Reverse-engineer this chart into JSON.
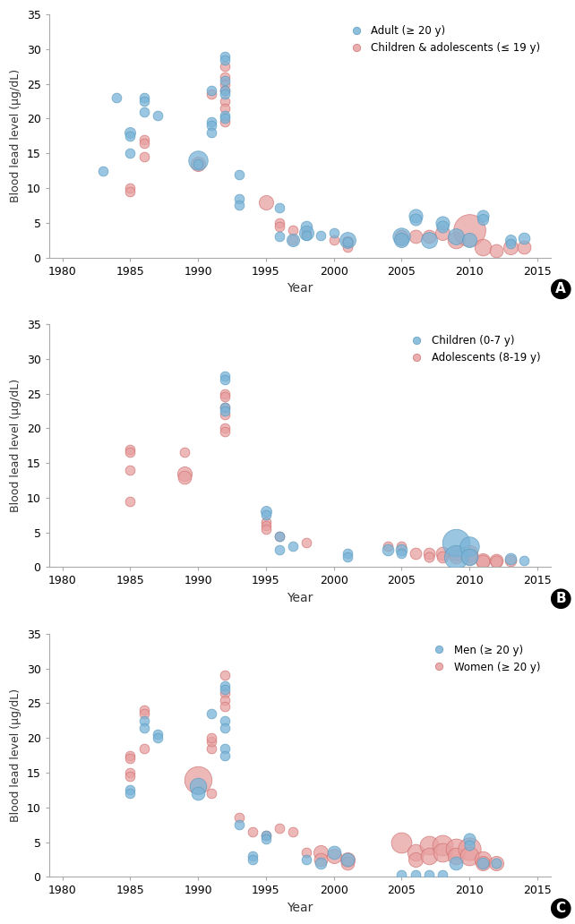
{
  "panel_A": {
    "title": "A",
    "legend": [
      "Adult (≥ 20 y)",
      "Children & adolescents (≤ 19 y)"
    ],
    "blue_color": "#7ab4d8",
    "pink_color": "#e8a0a0",
    "blue_edge": "#5a9abf",
    "pink_edge": "#d07070",
    "blue_data": [
      {
        "year": 1983,
        "bll": 12.5,
        "size": 20
      },
      {
        "year": 1984,
        "bll": 23.0,
        "size": 20
      },
      {
        "year": 1985,
        "bll": 18.0,
        "size": 25
      },
      {
        "year": 1985,
        "bll": 17.5,
        "size": 20
      },
      {
        "year": 1985,
        "bll": 15.0,
        "size": 20
      },
      {
        "year": 1986,
        "bll": 23.0,
        "size": 20
      },
      {
        "year": 1986,
        "bll": 22.5,
        "size": 20
      },
      {
        "year": 1986,
        "bll": 21.0,
        "size": 20
      },
      {
        "year": 1987,
        "bll": 20.5,
        "size": 20
      },
      {
        "year": 1990,
        "bll": 14.0,
        "size": 80
      },
      {
        "year": 1990,
        "bll": 13.5,
        "size": 20
      },
      {
        "year": 1991,
        "bll": 24.0,
        "size": 20
      },
      {
        "year": 1991,
        "bll": 19.5,
        "size": 20
      },
      {
        "year": 1991,
        "bll": 19.0,
        "size": 20
      },
      {
        "year": 1991,
        "bll": 18.0,
        "size": 20
      },
      {
        "year": 1992,
        "bll": 29.0,
        "size": 20
      },
      {
        "year": 1992,
        "bll": 28.5,
        "size": 20
      },
      {
        "year": 1992,
        "bll": 25.5,
        "size": 20
      },
      {
        "year": 1992,
        "bll": 24.0,
        "size": 20
      },
      {
        "year": 1992,
        "bll": 23.5,
        "size": 20
      },
      {
        "year": 1992,
        "bll": 20.5,
        "size": 20
      },
      {
        "year": 1992,
        "bll": 20.0,
        "size": 20
      },
      {
        "year": 1993,
        "bll": 12.0,
        "size": 20
      },
      {
        "year": 1993,
        "bll": 8.5,
        "size": 20
      },
      {
        "year": 1993,
        "bll": 7.5,
        "size": 20
      },
      {
        "year": 1996,
        "bll": 7.2,
        "size": 20
      },
      {
        "year": 1996,
        "bll": 3.0,
        "size": 20
      },
      {
        "year": 1997,
        "bll": 2.5,
        "size": 35
      },
      {
        "year": 1998,
        "bll": 4.5,
        "size": 28
      },
      {
        "year": 1998,
        "bll": 3.5,
        "size": 45
      },
      {
        "year": 1998,
        "bll": 3.2,
        "size": 20
      },
      {
        "year": 1999,
        "bll": 3.2,
        "size": 20
      },
      {
        "year": 2000,
        "bll": 3.5,
        "size": 20
      },
      {
        "year": 2001,
        "bll": 2.5,
        "size": 55
      },
      {
        "year": 2001,
        "bll": 2.3,
        "size": 20
      },
      {
        "year": 2005,
        "bll": 3.0,
        "size": 65
      },
      {
        "year": 2005,
        "bll": 2.5,
        "size": 45
      },
      {
        "year": 2006,
        "bll": 6.0,
        "size": 40
      },
      {
        "year": 2006,
        "bll": 5.5,
        "size": 30
      },
      {
        "year": 2007,
        "bll": 2.5,
        "size": 55
      },
      {
        "year": 2008,
        "bll": 5.0,
        "size": 40
      },
      {
        "year": 2008,
        "bll": 4.5,
        "size": 30
      },
      {
        "year": 2009,
        "bll": 3.0,
        "size": 55
      },
      {
        "year": 2010,
        "bll": 2.5,
        "size": 45
      },
      {
        "year": 2011,
        "bll": 6.0,
        "size": 30
      },
      {
        "year": 2011,
        "bll": 5.5,
        "size": 25
      },
      {
        "year": 2013,
        "bll": 2.5,
        "size": 25
      },
      {
        "year": 2013,
        "bll": 2.0,
        "size": 20
      },
      {
        "year": 2014,
        "bll": 2.8,
        "size": 28
      }
    ],
    "pink_data": [
      {
        "year": 1985,
        "bll": 10.0,
        "size": 20
      },
      {
        "year": 1985,
        "bll": 9.5,
        "size": 20
      },
      {
        "year": 1986,
        "bll": 17.0,
        "size": 20
      },
      {
        "year": 1986,
        "bll": 16.5,
        "size": 20
      },
      {
        "year": 1986,
        "bll": 14.5,
        "size": 20
      },
      {
        "year": 1990,
        "bll": 13.5,
        "size": 45
      },
      {
        "year": 1991,
        "bll": 23.5,
        "size": 20
      },
      {
        "year": 1992,
        "bll": 27.5,
        "size": 20
      },
      {
        "year": 1992,
        "bll": 26.0,
        "size": 20
      },
      {
        "year": 1992,
        "bll": 25.0,
        "size": 20
      },
      {
        "year": 1992,
        "bll": 24.0,
        "size": 20
      },
      {
        "year": 1992,
        "bll": 22.5,
        "size": 20
      },
      {
        "year": 1992,
        "bll": 21.5,
        "size": 20
      },
      {
        "year": 1992,
        "bll": 19.5,
        "size": 20
      },
      {
        "year": 1995,
        "bll": 8.0,
        "size": 45
      },
      {
        "year": 1996,
        "bll": 5.0,
        "size": 20
      },
      {
        "year": 1996,
        "bll": 4.5,
        "size": 20
      },
      {
        "year": 1997,
        "bll": 4.0,
        "size": 20
      },
      {
        "year": 1997,
        "bll": 2.5,
        "size": 20
      },
      {
        "year": 1998,
        "bll": 3.5,
        "size": 20
      },
      {
        "year": 2000,
        "bll": 2.5,
        "size": 20
      },
      {
        "year": 2001,
        "bll": 2.3,
        "size": 28
      },
      {
        "year": 2001,
        "bll": 1.5,
        "size": 20
      },
      {
        "year": 2005,
        "bll": 3.0,
        "size": 38
      },
      {
        "year": 2005,
        "bll": 2.5,
        "size": 28
      },
      {
        "year": 2006,
        "bll": 3.0,
        "size": 38
      },
      {
        "year": 2007,
        "bll": 3.0,
        "size": 38
      },
      {
        "year": 2008,
        "bll": 3.5,
        "size": 45
      },
      {
        "year": 2009,
        "bll": 2.5,
        "size": 60
      },
      {
        "year": 2010,
        "bll": 4.0,
        "size": 220
      },
      {
        "year": 2011,
        "bll": 1.5,
        "size": 60
      },
      {
        "year": 2012,
        "bll": 1.0,
        "size": 38
      },
      {
        "year": 2013,
        "bll": 1.5,
        "size": 45
      },
      {
        "year": 2014,
        "bll": 1.5,
        "size": 38
      }
    ]
  },
  "panel_B": {
    "title": "B",
    "legend": [
      "Children (0-7 y)",
      "Adolescents (8-19 y)"
    ],
    "blue_color": "#7ab4d8",
    "pink_color": "#e8a0a0",
    "blue_edge": "#5a9abf",
    "pink_edge": "#d07070",
    "blue_data": [
      {
        "year": 1992,
        "bll": 27.5,
        "size": 20
      },
      {
        "year": 1992,
        "bll": 27.0,
        "size": 20
      },
      {
        "year": 1992,
        "bll": 23.0,
        "size": 20
      },
      {
        "year": 1992,
        "bll": 22.5,
        "size": 20
      },
      {
        "year": 1995,
        "bll": 8.0,
        "size": 25
      },
      {
        "year": 1995,
        "bll": 7.5,
        "size": 20
      },
      {
        "year": 1996,
        "bll": 4.5,
        "size": 20
      },
      {
        "year": 1996,
        "bll": 2.5,
        "size": 20
      },
      {
        "year": 1997,
        "bll": 3.0,
        "size": 20
      },
      {
        "year": 2001,
        "bll": 2.0,
        "size": 20
      },
      {
        "year": 2001,
        "bll": 1.5,
        "size": 20
      },
      {
        "year": 2004,
        "bll": 2.5,
        "size": 28
      },
      {
        "year": 2005,
        "bll": 2.5,
        "size": 28
      },
      {
        "year": 2005,
        "bll": 2.0,
        "size": 20
      },
      {
        "year": 2009,
        "bll": 3.5,
        "size": 160
      },
      {
        "year": 2009,
        "bll": 1.5,
        "size": 120
      },
      {
        "year": 2010,
        "bll": 3.0,
        "size": 80
      },
      {
        "year": 2010,
        "bll": 1.5,
        "size": 60
      },
      {
        "year": 2013,
        "bll": 1.2,
        "size": 28
      },
      {
        "year": 2014,
        "bll": 1.0,
        "size": 20
      }
    ],
    "pink_data": [
      {
        "year": 1985,
        "bll": 17.0,
        "size": 20
      },
      {
        "year": 1985,
        "bll": 16.5,
        "size": 20
      },
      {
        "year": 1985,
        "bll": 14.0,
        "size": 20
      },
      {
        "year": 1985,
        "bll": 9.5,
        "size": 20
      },
      {
        "year": 1989,
        "bll": 16.5,
        "size": 20
      },
      {
        "year": 1989,
        "bll": 13.5,
        "size": 45
      },
      {
        "year": 1989,
        "bll": 13.0,
        "size": 38
      },
      {
        "year": 1992,
        "bll": 25.0,
        "size": 20
      },
      {
        "year": 1992,
        "bll": 24.5,
        "size": 20
      },
      {
        "year": 1992,
        "bll": 23.0,
        "size": 20
      },
      {
        "year": 1992,
        "bll": 22.0,
        "size": 20
      },
      {
        "year": 1992,
        "bll": 20.0,
        "size": 20
      },
      {
        "year": 1992,
        "bll": 19.5,
        "size": 20
      },
      {
        "year": 1995,
        "bll": 6.5,
        "size": 20
      },
      {
        "year": 1995,
        "bll": 6.0,
        "size": 20
      },
      {
        "year": 1995,
        "bll": 5.5,
        "size": 20
      },
      {
        "year": 1996,
        "bll": 4.5,
        "size": 20
      },
      {
        "year": 1998,
        "bll": 3.5,
        "size": 20
      },
      {
        "year": 2004,
        "bll": 3.0,
        "size": 20
      },
      {
        "year": 2005,
        "bll": 3.0,
        "size": 20
      },
      {
        "year": 2006,
        "bll": 2.0,
        "size": 28
      },
      {
        "year": 2007,
        "bll": 2.0,
        "size": 28
      },
      {
        "year": 2007,
        "bll": 1.5,
        "size": 22
      },
      {
        "year": 2008,
        "bll": 2.0,
        "size": 38
      },
      {
        "year": 2008,
        "bll": 1.5,
        "size": 28
      },
      {
        "year": 2009,
        "bll": 2.0,
        "size": 45
      },
      {
        "year": 2009,
        "bll": 1.5,
        "size": 38
      },
      {
        "year": 2010,
        "bll": 2.0,
        "size": 60
      },
      {
        "year": 2010,
        "bll": 1.5,
        "size": 52
      },
      {
        "year": 2011,
        "bll": 1.0,
        "size": 45
      },
      {
        "year": 2011,
        "bll": 0.8,
        "size": 38
      },
      {
        "year": 2012,
        "bll": 1.0,
        "size": 38
      },
      {
        "year": 2012,
        "bll": 0.8,
        "size": 30
      },
      {
        "year": 2013,
        "bll": 1.0,
        "size": 28
      }
    ]
  },
  "panel_C": {
    "title": "C",
    "legend": [
      "Men (≥ 20 y)",
      "Women (≥ 20 y)"
    ],
    "blue_color": "#7ab4d8",
    "pink_color": "#e8a0a0",
    "blue_edge": "#5a9abf",
    "pink_edge": "#d07070",
    "blue_data": [
      {
        "year": 1985,
        "bll": 12.5,
        "size": 20
      },
      {
        "year": 1985,
        "bll": 12.0,
        "size": 20
      },
      {
        "year": 1986,
        "bll": 22.5,
        "size": 20
      },
      {
        "year": 1986,
        "bll": 21.5,
        "size": 20
      },
      {
        "year": 1987,
        "bll": 20.5,
        "size": 20
      },
      {
        "year": 1987,
        "bll": 20.0,
        "size": 20
      },
      {
        "year": 1990,
        "bll": 13.0,
        "size": 60
      },
      {
        "year": 1990,
        "bll": 12.0,
        "size": 38
      },
      {
        "year": 1991,
        "bll": 23.5,
        "size": 20
      },
      {
        "year": 1992,
        "bll": 27.5,
        "size": 20
      },
      {
        "year": 1992,
        "bll": 27.0,
        "size": 20
      },
      {
        "year": 1992,
        "bll": 22.5,
        "size": 20
      },
      {
        "year": 1992,
        "bll": 21.5,
        "size": 20
      },
      {
        "year": 1992,
        "bll": 18.5,
        "size": 20
      },
      {
        "year": 1992,
        "bll": 17.5,
        "size": 20
      },
      {
        "year": 1993,
        "bll": 7.5,
        "size": 20
      },
      {
        "year": 1994,
        "bll": 3.0,
        "size": 20
      },
      {
        "year": 1994,
        "bll": 2.5,
        "size": 20
      },
      {
        "year": 1995,
        "bll": 6.0,
        "size": 20
      },
      {
        "year": 1995,
        "bll": 5.5,
        "size": 20
      },
      {
        "year": 1998,
        "bll": 2.5,
        "size": 20
      },
      {
        "year": 1999,
        "bll": 2.0,
        "size": 28
      },
      {
        "year": 2000,
        "bll": 3.5,
        "size": 38
      },
      {
        "year": 2001,
        "bll": 2.5,
        "size": 38
      },
      {
        "year": 2005,
        "bll": 0.3,
        "size": 20
      },
      {
        "year": 2006,
        "bll": 0.3,
        "size": 20
      },
      {
        "year": 2007,
        "bll": 0.3,
        "size": 20
      },
      {
        "year": 2008,
        "bll": 0.3,
        "size": 20
      },
      {
        "year": 2009,
        "bll": 2.0,
        "size": 38
      },
      {
        "year": 2010,
        "bll": 5.5,
        "size": 30
      },
      {
        "year": 2010,
        "bll": 4.5,
        "size": 22
      },
      {
        "year": 2011,
        "bll": 2.0,
        "size": 28
      },
      {
        "year": 2012,
        "bll": 2.0,
        "size": 22
      }
    ],
    "pink_data": [
      {
        "year": 1985,
        "bll": 17.5,
        "size": 20
      },
      {
        "year": 1985,
        "bll": 17.0,
        "size": 20
      },
      {
        "year": 1985,
        "bll": 15.0,
        "size": 20
      },
      {
        "year": 1985,
        "bll": 14.5,
        "size": 20
      },
      {
        "year": 1986,
        "bll": 24.0,
        "size": 20
      },
      {
        "year": 1986,
        "bll": 23.5,
        "size": 20
      },
      {
        "year": 1986,
        "bll": 18.5,
        "size": 20
      },
      {
        "year": 1990,
        "bll": 14.0,
        "size": 160
      },
      {
        "year": 1991,
        "bll": 12.0,
        "size": 20
      },
      {
        "year": 1991,
        "bll": 18.5,
        "size": 20
      },
      {
        "year": 1991,
        "bll": 19.5,
        "size": 20
      },
      {
        "year": 1991,
        "bll": 20.0,
        "size": 20
      },
      {
        "year": 1992,
        "bll": 29.0,
        "size": 20
      },
      {
        "year": 1992,
        "bll": 26.5,
        "size": 20
      },
      {
        "year": 1992,
        "bll": 25.5,
        "size": 20
      },
      {
        "year": 1992,
        "bll": 24.5,
        "size": 20
      },
      {
        "year": 1993,
        "bll": 8.5,
        "size": 20
      },
      {
        "year": 1994,
        "bll": 6.5,
        "size": 20
      },
      {
        "year": 1995,
        "bll": 6.0,
        "size": 20
      },
      {
        "year": 1996,
        "bll": 7.0,
        "size": 20
      },
      {
        "year": 1997,
        "bll": 6.5,
        "size": 20
      },
      {
        "year": 1998,
        "bll": 3.5,
        "size": 20
      },
      {
        "year": 1999,
        "bll": 3.5,
        "size": 45
      },
      {
        "year": 1999,
        "bll": 2.5,
        "size": 38
      },
      {
        "year": 2000,
        "bll": 3.0,
        "size": 45
      },
      {
        "year": 2001,
        "bll": 2.5,
        "size": 45
      },
      {
        "year": 2001,
        "bll": 2.0,
        "size": 38
      },
      {
        "year": 2005,
        "bll": 5.0,
        "size": 90
      },
      {
        "year": 2006,
        "bll": 3.5,
        "size": 60
      },
      {
        "year": 2006,
        "bll": 2.5,
        "size": 45
      },
      {
        "year": 2007,
        "bll": 4.5,
        "size": 75
      },
      {
        "year": 2007,
        "bll": 3.0,
        "size": 60
      },
      {
        "year": 2008,
        "bll": 4.5,
        "size": 90
      },
      {
        "year": 2008,
        "bll": 3.5,
        "size": 75
      },
      {
        "year": 2009,
        "bll": 4.0,
        "size": 90
      },
      {
        "year": 2009,
        "bll": 3.0,
        "size": 60
      },
      {
        "year": 2010,
        "bll": 4.0,
        "size": 110
      },
      {
        "year": 2010,
        "bll": 3.0,
        "size": 75
      },
      {
        "year": 2011,
        "bll": 2.5,
        "size": 60
      },
      {
        "year": 2011,
        "bll": 2.0,
        "size": 45
      },
      {
        "year": 2012,
        "bll": 2.0,
        "size": 45
      }
    ]
  },
  "xlim": [
    1979,
    2016
  ],
  "ylim": [
    0,
    35
  ],
  "xticks": [
    1980,
    1985,
    1990,
    1995,
    2000,
    2005,
    2010,
    2015
  ],
  "yticks": [
    0,
    5,
    10,
    15,
    20,
    25,
    30,
    35
  ],
  "xlabel": "Year",
  "ylabel": "Blood lead level (μg/dL)",
  "bg_color": "#ffffff"
}
